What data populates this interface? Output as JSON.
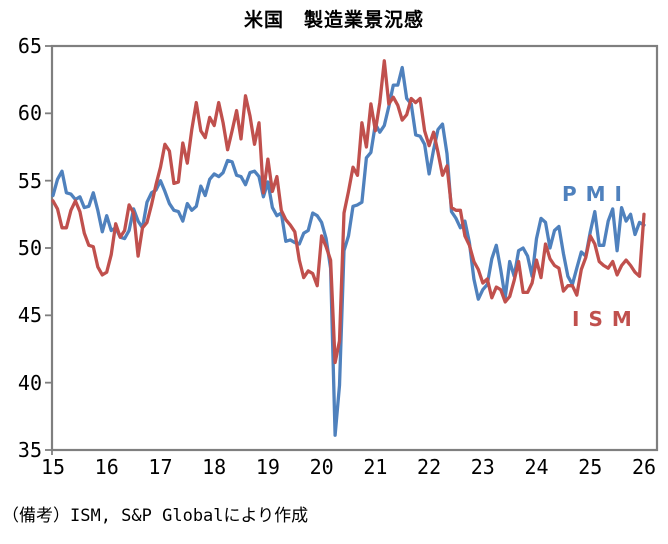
{
  "chart_data": {
    "type": "line",
    "title": "米国　製造業景況感",
    "xlabel": "",
    "ylabel": "",
    "ylim": [
      35,
      65
    ],
    "y_ticks": [
      65,
      60,
      55,
      50,
      45,
      40,
      35
    ],
    "x_ticks": [
      "15",
      "16",
      "17",
      "18",
      "19",
      "20",
      "21",
      "22",
      "23",
      "24",
      "25",
      "26"
    ],
    "x_unit": "year (monthly data, Jan 2015 - Jan 2026)",
    "grid": false,
    "legend_position": "inline-right",
    "axis_color": "#7f7f7f",
    "series": [
      {
        "name": "PMI",
        "color": "#4F81BD",
        "values": [
          53.9,
          55.1,
          55.7,
          54.1,
          54.0,
          53.6,
          53.8,
          53.0,
          53.1,
          54.1,
          52.8,
          51.2,
          52.4,
          51.3,
          51.5,
          50.8,
          50.7,
          51.3,
          52.9,
          52.0,
          51.5,
          53.4,
          54.1,
          54.3,
          55.0,
          54.2,
          53.3,
          52.8,
          52.7,
          52.0,
          53.3,
          52.8,
          53.1,
          54.6,
          53.9,
          55.1,
          55.5,
          55.3,
          55.6,
          56.5,
          56.4,
          55.4,
          55.3,
          54.7,
          55.6,
          55.7,
          55.3,
          53.8,
          54.9,
          53.0,
          52.4,
          52.6,
          50.5,
          50.6,
          50.4,
          50.3,
          51.1,
          51.3,
          52.6,
          52.4,
          51.9,
          50.7,
          48.5,
          36.1,
          39.8,
          49.8,
          50.9,
          53.1,
          53.2,
          53.4,
          56.7,
          57.1,
          59.2,
          58.6,
          59.1,
          60.5,
          62.1,
          62.1,
          63.4,
          61.1,
          60.7,
          58.4,
          58.3,
          57.7,
          55.5,
          57.3,
          58.8,
          59.2,
          57.0,
          52.7,
          52.2,
          51.5,
          52.0,
          50.4,
          47.7,
          46.2,
          46.9,
          47.3,
          49.2,
          50.2,
          48.4,
          46.3,
          49.0,
          47.9,
          49.8,
          50.0,
          49.4,
          47.9,
          50.7,
          52.2,
          51.9,
          50.0,
          51.3,
          51.6,
          49.6,
          47.9,
          47.3,
          48.5,
          49.7,
          49.4,
          51.2,
          52.7,
          50.2,
          50.2,
          52.0,
          52.9,
          49.8,
          53.0,
          52.0,
          52.5,
          51.0,
          51.9,
          51.7
        ]
      },
      {
        "name": "ISM",
        "color": "#C0504D",
        "values": [
          53.5,
          52.9,
          51.5,
          51.5,
          52.8,
          53.5,
          52.7,
          51.1,
          50.2,
          50.1,
          48.6,
          48.0,
          48.2,
          49.5,
          51.8,
          50.8,
          51.3,
          53.2,
          52.6,
          49.4,
          51.5,
          51.9,
          53.2,
          54.7,
          56.0,
          57.7,
          57.2,
          54.8,
          54.9,
          57.8,
          56.3,
          58.8,
          60.8,
          58.7,
          58.2,
          59.7,
          59.1,
          60.8,
          59.3,
          57.3,
          58.7,
          60.2,
          58.1,
          61.3,
          59.8,
          57.7,
          59.3,
          54.1,
          56.6,
          54.2,
          55.3,
          52.8,
          52.1,
          51.7,
          51.2,
          49.1,
          47.8,
          48.3,
          48.1,
          47.2,
          50.9,
          50.1,
          49.1,
          41.5,
          43.1,
          52.6,
          54.2,
          56.0,
          55.4,
          59.3,
          57.5,
          60.7,
          58.7,
          60.8,
          63.9,
          60.7,
          61.2,
          60.6,
          59.5,
          59.9,
          61.1,
          60.8,
          61.1,
          58.7,
          57.6,
          58.6,
          57.1,
          55.4,
          56.1,
          53.0,
          52.8,
          52.8,
          50.9,
          50.2,
          49.0,
          48.4,
          47.4,
          47.7,
          46.3,
          47.1,
          46.9,
          46.0,
          46.4,
          47.6,
          49.0,
          46.7,
          46.7,
          47.4,
          49.1,
          47.8,
          50.3,
          49.2,
          48.7,
          48.5,
          46.8,
          47.2,
          47.2,
          46.5,
          48.4,
          49.3,
          50.9,
          50.3,
          49.0,
          48.7,
          48.5,
          49.0,
          48.0,
          48.7,
          49.1,
          48.7,
          48.2,
          47.9,
          52.5
        ]
      }
    ]
  },
  "footer": {
    "note": "（備考）ISM, S&P Globalにより作成"
  }
}
